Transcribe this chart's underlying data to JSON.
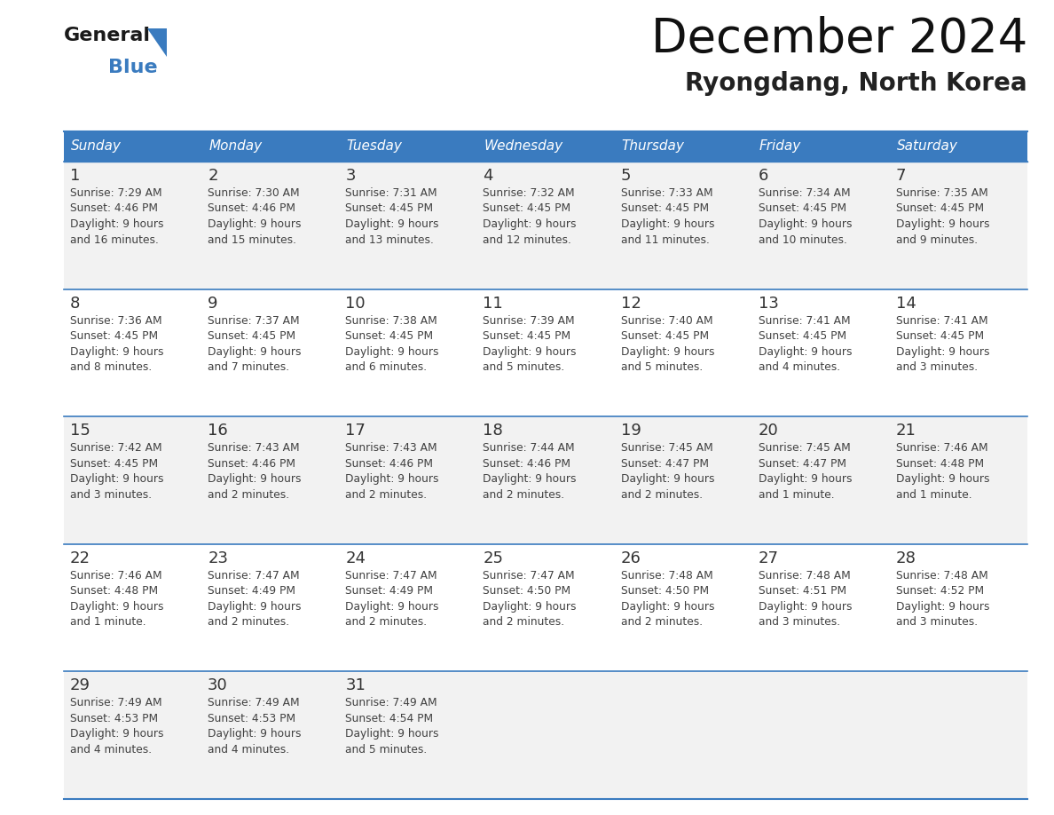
{
  "title": "December 2024",
  "subtitle": "Ryongdang, North Korea",
  "header_color": "#3a7bbf",
  "header_text_color": "#ffffff",
  "row_bg_even": "#f2f2f2",
  "row_bg_odd": "#ffffff",
  "border_color": "#3a7bbf",
  "text_color": "#404040",
  "day_num_color": "#333333",
  "days_of_week": [
    "Sunday",
    "Monday",
    "Tuesday",
    "Wednesday",
    "Thursday",
    "Friday",
    "Saturday"
  ],
  "weeks": [
    [
      {
        "day": "1",
        "sunrise": "7:29 AM",
        "sunset": "4:46 PM",
        "daylight": "9 hours\nand 16 minutes."
      },
      {
        "day": "2",
        "sunrise": "7:30 AM",
        "sunset": "4:46 PM",
        "daylight": "9 hours\nand 15 minutes."
      },
      {
        "day": "3",
        "sunrise": "7:31 AM",
        "sunset": "4:45 PM",
        "daylight": "9 hours\nand 13 minutes."
      },
      {
        "day": "4",
        "sunrise": "7:32 AM",
        "sunset": "4:45 PM",
        "daylight": "9 hours\nand 12 minutes."
      },
      {
        "day": "5",
        "sunrise": "7:33 AM",
        "sunset": "4:45 PM",
        "daylight": "9 hours\nand 11 minutes."
      },
      {
        "day": "6",
        "sunrise": "7:34 AM",
        "sunset": "4:45 PM",
        "daylight": "9 hours\nand 10 minutes."
      },
      {
        "day": "7",
        "sunrise": "7:35 AM",
        "sunset": "4:45 PM",
        "daylight": "9 hours\nand 9 minutes."
      }
    ],
    [
      {
        "day": "8",
        "sunrise": "7:36 AM",
        "sunset": "4:45 PM",
        "daylight": "9 hours\nand 8 minutes."
      },
      {
        "day": "9",
        "sunrise": "7:37 AM",
        "sunset": "4:45 PM",
        "daylight": "9 hours\nand 7 minutes."
      },
      {
        "day": "10",
        "sunrise": "7:38 AM",
        "sunset": "4:45 PM",
        "daylight": "9 hours\nand 6 minutes."
      },
      {
        "day": "11",
        "sunrise": "7:39 AM",
        "sunset": "4:45 PM",
        "daylight": "9 hours\nand 5 minutes."
      },
      {
        "day": "12",
        "sunrise": "7:40 AM",
        "sunset": "4:45 PM",
        "daylight": "9 hours\nand 5 minutes."
      },
      {
        "day": "13",
        "sunrise": "7:41 AM",
        "sunset": "4:45 PM",
        "daylight": "9 hours\nand 4 minutes."
      },
      {
        "day": "14",
        "sunrise": "7:41 AM",
        "sunset": "4:45 PM",
        "daylight": "9 hours\nand 3 minutes."
      }
    ],
    [
      {
        "day": "15",
        "sunrise": "7:42 AM",
        "sunset": "4:45 PM",
        "daylight": "9 hours\nand 3 minutes."
      },
      {
        "day": "16",
        "sunrise": "7:43 AM",
        "sunset": "4:46 PM",
        "daylight": "9 hours\nand 2 minutes."
      },
      {
        "day": "17",
        "sunrise": "7:43 AM",
        "sunset": "4:46 PM",
        "daylight": "9 hours\nand 2 minutes."
      },
      {
        "day": "18",
        "sunrise": "7:44 AM",
        "sunset": "4:46 PM",
        "daylight": "9 hours\nand 2 minutes."
      },
      {
        "day": "19",
        "sunrise": "7:45 AM",
        "sunset": "4:47 PM",
        "daylight": "9 hours\nand 2 minutes."
      },
      {
        "day": "20",
        "sunrise": "7:45 AM",
        "sunset": "4:47 PM",
        "daylight": "9 hours\nand 1 minute."
      },
      {
        "day": "21",
        "sunrise": "7:46 AM",
        "sunset": "4:48 PM",
        "daylight": "9 hours\nand 1 minute."
      }
    ],
    [
      {
        "day": "22",
        "sunrise": "7:46 AM",
        "sunset": "4:48 PM",
        "daylight": "9 hours\nand 1 minute."
      },
      {
        "day": "23",
        "sunrise": "7:47 AM",
        "sunset": "4:49 PM",
        "daylight": "9 hours\nand 2 minutes."
      },
      {
        "day": "24",
        "sunrise": "7:47 AM",
        "sunset": "4:49 PM",
        "daylight": "9 hours\nand 2 minutes."
      },
      {
        "day": "25",
        "sunrise": "7:47 AM",
        "sunset": "4:50 PM",
        "daylight": "9 hours\nand 2 minutes."
      },
      {
        "day": "26",
        "sunrise": "7:48 AM",
        "sunset": "4:50 PM",
        "daylight": "9 hours\nand 2 minutes."
      },
      {
        "day": "27",
        "sunrise": "7:48 AM",
        "sunset": "4:51 PM",
        "daylight": "9 hours\nand 3 minutes."
      },
      {
        "day": "28",
        "sunrise": "7:48 AM",
        "sunset": "4:52 PM",
        "daylight": "9 hours\nand 3 minutes."
      }
    ],
    [
      {
        "day": "29",
        "sunrise": "7:49 AM",
        "sunset": "4:53 PM",
        "daylight": "9 hours\nand 4 minutes."
      },
      {
        "day": "30",
        "sunrise": "7:49 AM",
        "sunset": "4:53 PM",
        "daylight": "9 hours\nand 4 minutes."
      },
      {
        "day": "31",
        "sunrise": "7:49 AM",
        "sunset": "4:54 PM",
        "daylight": "9 hours\nand 5 minutes."
      },
      null,
      null,
      null,
      null
    ]
  ]
}
